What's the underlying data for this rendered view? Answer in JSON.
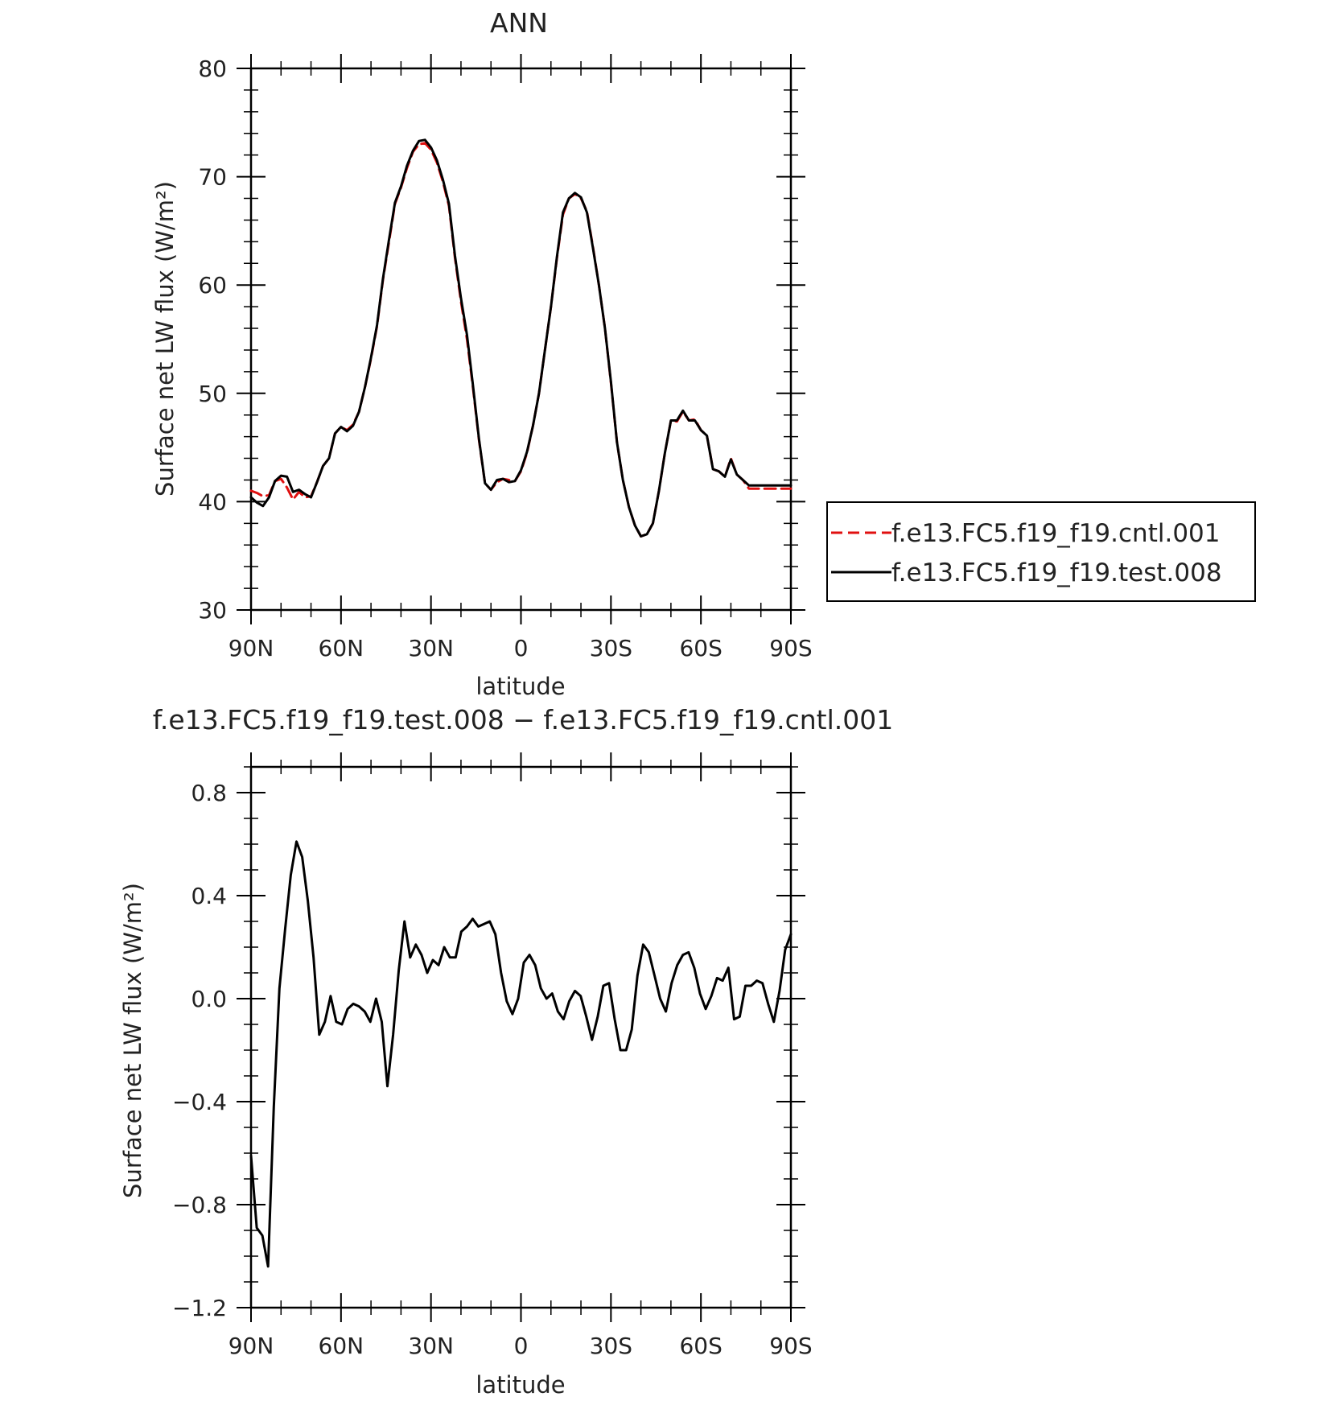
{
  "chart_data": [
    {
      "type": "line",
      "title": "ANN",
      "xlabel": "latitude",
      "ylabel": "Surface net LW flux (W/m²)",
      "xlim": [
        90,
        -90
      ],
      "ylim": [
        30,
        80
      ],
      "x_ticks": [
        {
          "value": 90,
          "label": "90N"
        },
        {
          "value": 60,
          "label": "60N"
        },
        {
          "value": 30,
          "label": "30N"
        },
        {
          "value": 0,
          "label": "0"
        },
        {
          "value": -30,
          "label": "30S"
        },
        {
          "value": -60,
          "label": "60S"
        },
        {
          "value": -90,
          "label": "90S"
        }
      ],
      "y_ticks": [
        {
          "value": 80,
          "label": "80"
        },
        {
          "value": 70,
          "label": "70"
        },
        {
          "value": 60,
          "label": "60"
        },
        {
          "value": 50,
          "label": "50"
        },
        {
          "value": 40,
          "label": "40"
        },
        {
          "value": 30,
          "label": "30"
        }
      ],
      "grid": false,
      "legend_position": "right",
      "x": [
        90,
        88,
        86,
        84,
        82,
        80,
        78,
        76,
        74,
        72,
        70,
        68,
        66,
        64,
        62,
        60,
        58,
        56,
        54,
        52,
        50,
        48,
        46,
        44,
        42,
        40,
        38,
        36,
        34,
        32,
        30,
        28,
        26,
        24,
        22,
        20,
        18,
        16,
        14,
        12,
        10,
        8,
        6,
        4,
        2,
        0,
        -2,
        -4,
        -6,
        -8,
        -10,
        -12,
        -14,
        -16,
        -18,
        -20,
        -22,
        -24,
        -26,
        -28,
        -30,
        -32,
        -34,
        -36,
        -38,
        -40,
        -42,
        -44,
        -46,
        -48,
        -50,
        -52,
        -54,
        -56,
        -58,
        -60,
        -62,
        -64,
        -66,
        -68,
        -70,
        -72,
        -74,
        -76,
        -78,
        -80,
        -82,
        -84,
        -86,
        -88,
        -90
      ],
      "series": [
        {
          "name": "f.e13.FC5.f19_f19.cntl.001",
          "color": "#e01010",
          "dash": "dashed",
          "values": [
            41.0,
            40.8,
            40.5,
            40.6,
            41.9,
            42.1,
            41.3,
            40.2,
            40.9,
            40.4,
            40.5,
            41.8,
            43.3,
            44.0,
            46.3,
            46.9,
            46.6,
            47.1,
            48.3,
            50.6,
            53.2,
            56.2,
            60.5,
            64.0,
            67.5,
            69.0,
            70.8,
            72.3,
            73.0,
            73.1,
            72.5,
            71.3,
            69.5,
            67.3,
            62.5,
            58.5,
            55.0,
            50.5,
            45.7,
            41.7,
            41.1,
            41.8,
            42.1,
            42.0,
            41.9,
            42.8,
            44.5,
            47.0,
            50.0,
            54.0,
            58.0,
            62.5,
            66.5,
            68.0,
            68.4,
            68.0,
            66.8,
            63.5,
            60.0,
            56.0,
            51.0,
            45.5,
            42.0,
            39.5,
            37.8,
            36.8,
            37.0,
            38.0,
            41.0,
            44.5,
            47.5,
            47.4,
            48.3,
            47.5,
            47.6,
            46.6,
            46.1,
            43.0,
            42.8,
            42.3,
            44.0,
            42.5,
            42.0,
            41.2,
            41.2,
            41.2,
            41.2,
            41.2,
            41.2,
            41.2,
            41.2
          ]
        },
        {
          "name": "f.e13.FC5.f19_f19.test.008",
          "color": "#000000",
          "dash": "solid",
          "values": [
            40.4,
            39.9,
            39.6,
            40.4,
            41.9,
            42.4,
            42.3,
            40.9,
            41.1,
            40.7,
            40.4,
            41.8,
            43.3,
            44.0,
            46.3,
            46.9,
            46.5,
            47.0,
            48.3,
            50.6,
            53.3,
            56.3,
            60.6,
            64.2,
            67.6,
            69.1,
            71.0,
            72.4,
            73.3,
            73.4,
            72.7,
            71.5,
            69.7,
            67.5,
            62.7,
            58.8,
            55.4,
            50.7,
            45.8,
            41.7,
            41.1,
            42.0,
            42.1,
            41.8,
            41.9,
            42.9,
            44.6,
            47.0,
            50.0,
            54.0,
            58.0,
            62.6,
            66.7,
            68.0,
            68.5,
            68.1,
            66.7,
            63.4,
            60.0,
            56.0,
            51.1,
            45.5,
            42.0,
            39.5,
            37.8,
            36.8,
            37.0,
            38.0,
            41.0,
            44.5,
            47.5,
            47.5,
            48.4,
            47.5,
            47.5,
            46.6,
            46.1,
            43.0,
            42.8,
            42.3,
            43.9,
            42.5,
            42.0,
            41.5,
            41.5,
            41.5,
            41.5,
            41.5,
            41.5,
            41.5,
            41.5
          ]
        }
      ]
    },
    {
      "type": "line",
      "title": "f.e13.FC5.f19_f19.test.008 − f.e13.FC5.f19_f19.cntl.001",
      "xlabel": "latitude",
      "ylabel": "Surface net LW flux (W/m²)",
      "xlim": [
        90,
        -90
      ],
      "ylim": [
        -1.2,
        0.9
      ],
      "x_ticks": [
        {
          "value": 90,
          "label": "90N"
        },
        {
          "value": 60,
          "label": "60N"
        },
        {
          "value": 30,
          "label": "30N"
        },
        {
          "value": 0,
          "label": "0"
        },
        {
          "value": -30,
          "label": "30S"
        },
        {
          "value": -60,
          "label": "60S"
        },
        {
          "value": -90,
          "label": "90S"
        }
      ],
      "y_ticks": [
        {
          "value": 0.8,
          "label": "0.8"
        },
        {
          "value": 0.4,
          "label": "0.4"
        },
        {
          "value": 0.0,
          "label": "0.0"
        },
        {
          "value": -0.4,
          "label": "−0.4"
        },
        {
          "value": -0.8,
          "label": "−0.8"
        },
        {
          "value": -1.2,
          "label": "−1.2"
        }
      ],
      "grid": false,
      "series": [
        {
          "color": "#000000",
          "dash": "solid",
          "values": [
            -0.61,
            -0.89,
            -0.92,
            -1.04,
            -0.42,
            0.04,
            0.27,
            0.48,
            0.61,
            0.55,
            0.38,
            0.16,
            -0.14,
            -0.09,
            0.01,
            -0.09,
            -0.1,
            -0.04,
            -0.02,
            -0.03,
            -0.05,
            -0.09,
            0.0,
            -0.09,
            -0.34,
            -0.14,
            0.11,
            0.3,
            0.16,
            0.21,
            0.17,
            0.1,
            0.15,
            0.13,
            0.2,
            0.16,
            0.16,
            0.26,
            0.28,
            0.31,
            0.28,
            0.29,
            0.3,
            0.25,
            0.1,
            -0.01,
            -0.06,
            0.0,
            0.14,
            0.17,
            0.13,
            0.04,
            0.0,
            0.02,
            -0.05,
            -0.08,
            -0.01,
            0.03,
            0.01,
            -0.07,
            -0.16,
            -0.07,
            0.05,
            0.06,
            -0.08,
            -0.2,
            -0.2,
            -0.12,
            0.09,
            0.21,
            0.18,
            0.09,
            0.0,
            -0.05,
            0.06,
            0.13,
            0.17,
            0.18,
            0.12,
            0.02,
            -0.04,
            0.01,
            0.08,
            0.07,
            0.12,
            -0.08,
            -0.07,
            0.05,
            0.05,
            0.07,
            0.06,
            -0.02,
            -0.09,
            0.03,
            0.19,
            0.25
          ]
        }
      ]
    }
  ]
}
